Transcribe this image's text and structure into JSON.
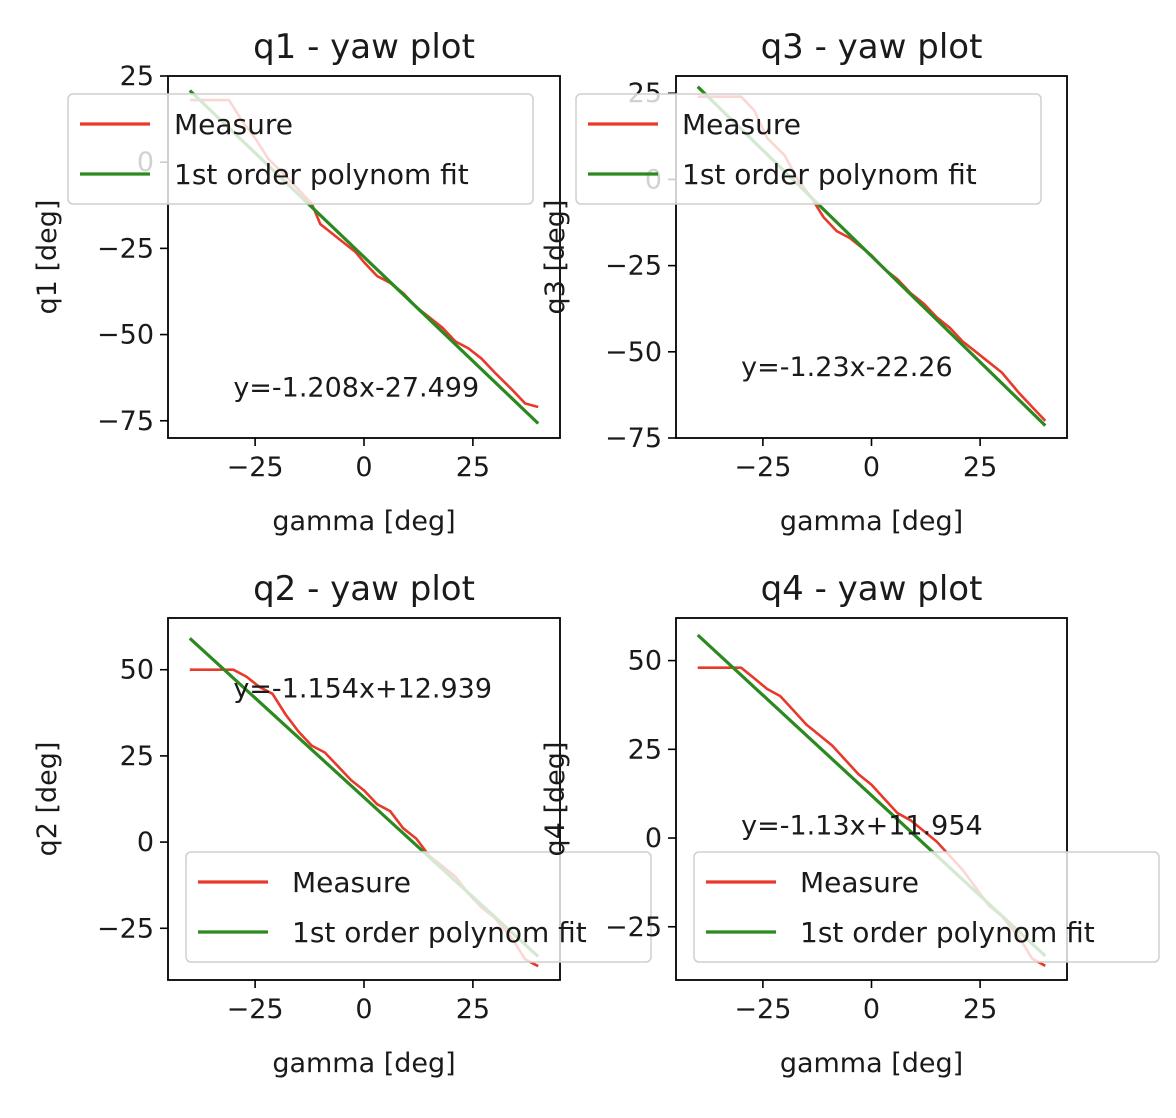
{
  "chart_data": [
    {
      "type": "line",
      "title": "q1 - yaw plot",
      "xlabel": "gamma [deg]",
      "ylabel": "q1 [deg]",
      "xlim": [
        -45,
        45
      ],
      "ylim": [
        -80,
        25
      ],
      "xticks": [
        -25,
        0,
        25
      ],
      "yticks": [
        25,
        0,
        -25,
        -50,
        -75
      ],
      "xtick_labels": [
        "−25",
        "0",
        "25"
      ],
      "ytick_labels": [
        "25",
        "0",
        "−25",
        "−50",
        "−75"
      ],
      "annotation": "y=-1.208x-27.499",
      "legend": [
        "Measure",
        "1st order polynom fit"
      ],
      "legend_position": "top",
      "grid": false,
      "series": [
        {
          "name": "Measure",
          "color": "#e8392b",
          "x": [
            -40,
            -35,
            -31,
            -28,
            -25,
            -22,
            -18,
            -15,
            -12,
            -10,
            -8,
            -5,
            -2,
            0,
            3,
            6,
            9,
            12,
            15,
            18,
            21,
            24,
            27,
            30,
            34,
            37,
            40
          ],
          "y": [
            18,
            18,
            18,
            12,
            7,
            1,
            -4,
            -8,
            -12,
            -18,
            -20,
            -23,
            -26,
            -29,
            -33,
            -35,
            -38,
            -42,
            -45,
            -48,
            -52,
            -54,
            -57,
            -61,
            -66,
            -70,
            -71
          ]
        },
        {
          "name": "1st order polynom fit",
          "color": "#2b8a1f",
          "x": [
            -40,
            40
          ],
          "y": [
            20.8,
            -75.8
          ]
        }
      ]
    },
    {
      "type": "line",
      "title": "q3 - yaw plot",
      "xlabel": "gamma [deg]",
      "ylabel": "q3 [deg]",
      "xlim": [
        -45,
        45
      ],
      "ylim": [
        -75,
        30
      ],
      "xticks": [
        -25,
        0,
        25
      ],
      "yticks": [
        25,
        0,
        -25,
        -50,
        -75
      ],
      "xtick_labels": [
        "−25",
        "0",
        "25"
      ],
      "ytick_labels": [
        "25",
        "0",
        "−25",
        "−50",
        "−75"
      ],
      "annotation": "y=-1.23x-22.26",
      "legend": [
        "Measure",
        "1st order polynom fit"
      ],
      "legend_position": "top",
      "grid": false,
      "series": [
        {
          "name": "Measure",
          "color": "#e8392b",
          "x": [
            -40,
            -35,
            -30,
            -27,
            -24,
            -20,
            -17,
            -14,
            -11,
            -8,
            -5,
            -2,
            0,
            3,
            6,
            9,
            12,
            15,
            18,
            21,
            24,
            27,
            30,
            34,
            37,
            40
          ],
          "y": [
            24,
            24,
            24,
            20,
            12,
            7,
            0,
            -5,
            -11,
            -15,
            -17,
            -20,
            -22,
            -26,
            -29,
            -33,
            -36,
            -40,
            -43,
            -47,
            -50,
            -53,
            -56,
            -62,
            -66,
            -70
          ]
        },
        {
          "name": "1st order polynom fit",
          "color": "#2b8a1f",
          "x": [
            -40,
            40
          ],
          "y": [
            26.9,
            -71.4
          ]
        }
      ]
    },
    {
      "type": "line",
      "title": "q2 - yaw plot",
      "xlabel": "gamma [deg]",
      "ylabel": "q2 [deg]",
      "xlim": [
        -45,
        45
      ],
      "ylim": [
        -40,
        65
      ],
      "xticks": [
        -25,
        0,
        25
      ],
      "yticks": [
        50,
        25,
        0,
        -25
      ],
      "xtick_labels": [
        "−25",
        "0",
        "25"
      ],
      "ytick_labels": [
        "50",
        "25",
        "0",
        "−25"
      ],
      "annotation": "y=-1.154x+12.939",
      "legend": [
        "Measure",
        "1st order polynom fit"
      ],
      "legend_position": "lower right",
      "grid": false,
      "series": [
        {
          "name": "Measure",
          "color": "#e8392b",
          "x": [
            -40,
            -35,
            -30,
            -27,
            -24,
            -21,
            -18,
            -15,
            -12,
            -9,
            -6,
            -3,
            0,
            3,
            6,
            9,
            12,
            15,
            18,
            21,
            24,
            27,
            30,
            34,
            37,
            40
          ],
          "y": [
            50,
            50,
            50,
            48,
            45,
            43,
            37,
            32,
            28,
            26,
            22,
            18,
            15,
            11,
            9,
            4,
            1,
            -4,
            -7,
            -10,
            -15,
            -19,
            -22,
            -28,
            -34,
            -36
          ]
        },
        {
          "name": "1st order polynom fit",
          "color": "#2b8a1f",
          "x": [
            -40,
            40
          ],
          "y": [
            59.1,
            -33.2
          ]
        }
      ]
    },
    {
      "type": "line",
      "title": "q4 - yaw plot",
      "xlabel": "gamma [deg]",
      "ylabel": "q4 [deg]",
      "xlim": [
        -45,
        45
      ],
      "ylim": [
        -40,
        62
      ],
      "xticks": [
        -25,
        0,
        25
      ],
      "yticks": [
        50,
        25,
        0,
        -25
      ],
      "xtick_labels": [
        "−25",
        "0",
        "25"
      ],
      "ytick_labels": [
        "50",
        "25",
        "0",
        "−25"
      ],
      "annotation": "y=-1.13x+11.954",
      "legend": [
        "Measure",
        "1st order polynom fit"
      ],
      "legend_position": "lower right",
      "grid": false,
      "series": [
        {
          "name": "Measure",
          "color": "#e8392b",
          "x": [
            -40,
            -35,
            -30,
            -27,
            -24,
            -21,
            -18,
            -15,
            -12,
            -9,
            -6,
            -3,
            0,
            3,
            6,
            9,
            12,
            15,
            18,
            21,
            24,
            27,
            30,
            34,
            37,
            40
          ],
          "y": [
            48,
            48,
            48,
            45,
            42,
            40,
            36,
            32,
            29,
            26,
            22,
            18,
            15,
            11,
            7,
            5,
            2,
            -1,
            -5,
            -9,
            -14,
            -19,
            -22,
            -28,
            -34,
            -36
          ]
        },
        {
          "name": "1st order polynom fit",
          "color": "#2b8a1f",
          "x": [
            -40,
            40
          ],
          "y": [
            57.2,
            -33.2
          ]
        }
      ]
    }
  ]
}
